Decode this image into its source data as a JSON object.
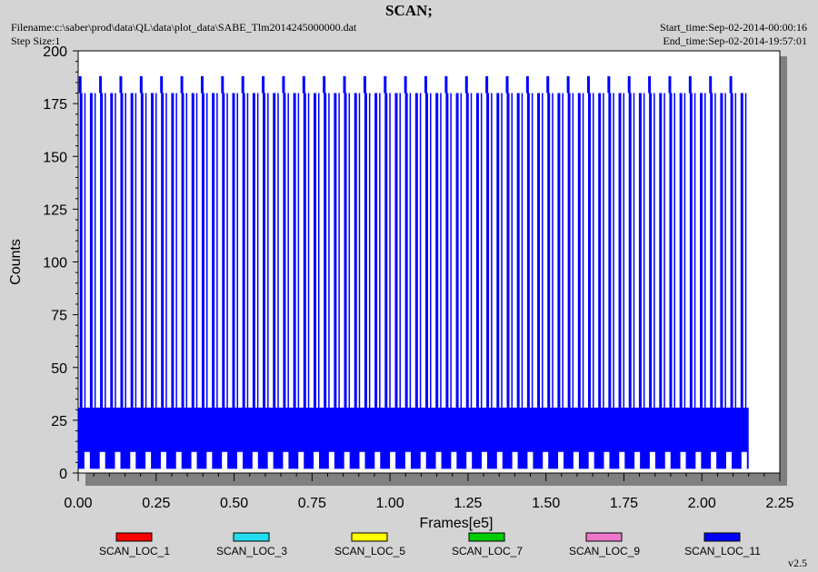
{
  "header": {
    "title": "SCAN;",
    "filename": "Filename:c:\\saber\\prod\\data\\QL\\data\\plot_data\\SABE_Tlm2014245000000.dat",
    "step_size": "Step Size:1",
    "start_time": "Start_time:Sep-02-2014-00:00:16",
    "end_time": "End_time:Sep-02-2014-19:57:01"
  },
  "version": "v2.5",
  "colors": {
    "plot_background": "#ffffff",
    "page_background": "#d4d4d4",
    "shadow": "#808080",
    "SCAN_LOC_1": "#ff0000",
    "SCAN_LOC_3": "#22ddee",
    "SCAN_LOC_5": "#ffff00",
    "SCAN_LOC_7": "#00cc00",
    "SCAN_LOC_9": "#ee77cc",
    "SCAN_LOC_11": "#0000ff"
  },
  "chart_data": {
    "type": "line",
    "title": "SCAN;",
    "xlabel": "Frames[e5]",
    "ylabel": "Counts",
    "xlim": [
      0,
      2.25
    ],
    "ylim": [
      0,
      200
    ],
    "xticks": [
      "0.00",
      "0.25",
      "0.50",
      "0.75",
      "1.00",
      "1.25",
      "1.50",
      "1.75",
      "2.00",
      "2.25"
    ],
    "yticks": [
      "0",
      "25",
      "50",
      "75",
      "100",
      "125",
      "150",
      "175",
      "200"
    ],
    "grid": false,
    "legend_position": "bottom",
    "data_extent": {
      "x_min": 0.0,
      "x_max": 2.15
    },
    "series": [
      {
        "name": "SCAN_LOC_1",
        "color": "#ff0000",
        "baseline_min": 10,
        "baseline_max": 31,
        "spike_level": null
      },
      {
        "name": "SCAN_LOC_3",
        "color": "#22ddee",
        "baseline_min": 10,
        "baseline_max": 31,
        "spike_level": null
      },
      {
        "name": "SCAN_LOC_5",
        "color": "#ffff00",
        "baseline_min": 10,
        "baseline_max": 31,
        "spike_level": null
      },
      {
        "name": "SCAN_LOC_7",
        "color": "#00cc00",
        "baseline_min": 10,
        "baseline_max": 31,
        "spike_level": null
      },
      {
        "name": "SCAN_LOC_9",
        "color": "#ee77cc",
        "baseline_min": 10,
        "baseline_max": 31,
        "spike_level": null
      },
      {
        "name": "SCAN_LOC_11",
        "color": "#0000ff",
        "baseline_min": 2,
        "baseline_max": 31,
        "spike_level": 180,
        "peak_level": 188,
        "spike_start": 0.005,
        "spike_spacing": 0.0326,
        "spike_count": 66
      }
    ]
  }
}
